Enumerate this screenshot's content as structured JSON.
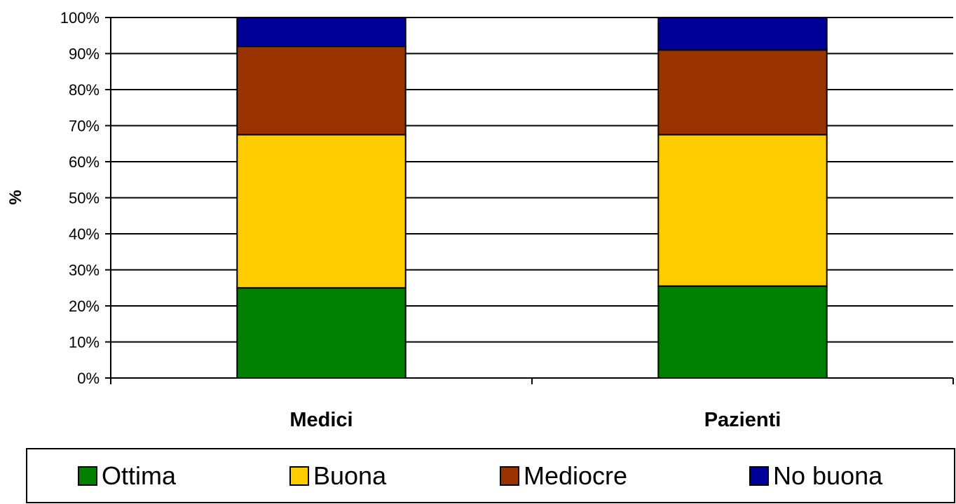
{
  "chart_data": {
    "type": "bar",
    "stacked": true,
    "percent": true,
    "categories": [
      "Medici",
      "Pazienti"
    ],
    "series": [
      {
        "name": "Ottima",
        "color": "#008000",
        "values": [
          25.0,
          25.5
        ]
      },
      {
        "name": "Buona",
        "color": "#ffcc00",
        "values": [
          42.5,
          42.0
        ]
      },
      {
        "name": "Mediocre",
        "color": "#993300",
        "values": [
          24.5,
          23.5
        ]
      },
      {
        "name": "No buona",
        "color": "#000099",
        "values": [
          8.0,
          9.0
        ]
      }
    ],
    "ylabel": "%",
    "xlabel": "",
    "ylim": [
      0,
      100
    ],
    "yticks": [
      "0%",
      "10%",
      "20%",
      "30%",
      "40%",
      "50%",
      "60%",
      "70%",
      "80%",
      "90%",
      "100%"
    ],
    "grid": true,
    "legend_position": "bottom"
  }
}
